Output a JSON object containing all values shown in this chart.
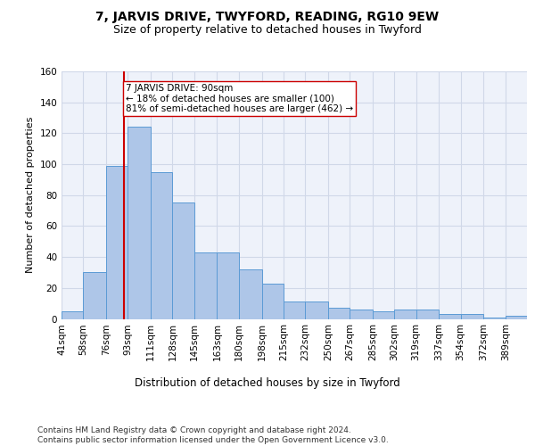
{
  "title": "7, JARVIS DRIVE, TWYFORD, READING, RG10 9EW",
  "subtitle": "Size of property relative to detached houses in Twyford",
  "xlabel": "Distribution of detached houses by size in Twyford",
  "ylabel": "Number of detached properties",
  "bins": [
    "41sqm",
    "58sqm",
    "76sqm",
    "93sqm",
    "111sqm",
    "128sqm",
    "145sqm",
    "163sqm",
    "180sqm",
    "198sqm",
    "215sqm",
    "232sqm",
    "250sqm",
    "267sqm",
    "285sqm",
    "302sqm",
    "319sqm",
    "337sqm",
    "354sqm",
    "372sqm",
    "389sqm"
  ],
  "bin_edges": [
    41,
    58,
    76,
    93,
    111,
    128,
    145,
    163,
    180,
    198,
    215,
    232,
    250,
    267,
    285,
    302,
    319,
    337,
    354,
    372,
    389
  ],
  "values": [
    5,
    30,
    99,
    124,
    95,
    75,
    43,
    43,
    32,
    23,
    11,
    11,
    7,
    6,
    5,
    6,
    6,
    3,
    3,
    1,
    2
  ],
  "bar_color": "#AEC6E8",
  "bar_edge_color": "#5B9BD5",
  "property_size": 90,
  "property_line_color": "#cc0000",
  "annotation_line1": "7 JARVIS DRIVE: 90sqm",
  "annotation_line2": "← 18% of detached houses are smaller (100)",
  "annotation_line3": "81% of semi-detached houses are larger (462) →",
  "annotation_box_color": "white",
  "annotation_box_edge_color": "#cc0000",
  "ylim": [
    0,
    160
  ],
  "yticks": [
    0,
    20,
    40,
    60,
    80,
    100,
    120,
    140,
    160
  ],
  "grid_color": "#d0d8e8",
  "background_color": "#eef2fa",
  "footer": "Contains HM Land Registry data © Crown copyright and database right 2024.\nContains public sector information licensed under the Open Government Licence v3.0.",
  "title_fontsize": 10,
  "subtitle_fontsize": 9,
  "xlabel_fontsize": 8.5,
  "ylabel_fontsize": 8,
  "tick_fontsize": 7.5,
  "annotation_fontsize": 7.5,
  "footer_fontsize": 6.5
}
